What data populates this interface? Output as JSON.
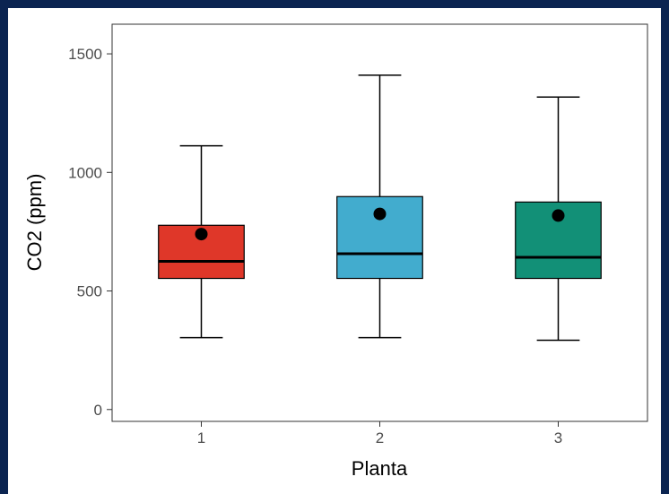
{
  "chart_data": {
    "type": "box",
    "title": "",
    "xlabel": "Planta",
    "ylabel": "CO2 (ppm)",
    "categories": [
      "1",
      "2",
      "3"
    ],
    "ylim": [
      -50,
      1625
    ],
    "yticks": [
      0,
      500,
      1000,
      1500
    ],
    "ytick_labels": [
      "0",
      "500",
      "1000",
      "1500"
    ],
    "grid": false,
    "legend": "none",
    "boxes": [
      {
        "category": "1",
        "whisker_low": 303,
        "q1": 553,
        "median": 625,
        "q3": 777,
        "whisker_high": 1112,
        "mean": 740,
        "color": "#df3729"
      },
      {
        "category": "2",
        "whisker_low": 303,
        "q1": 553,
        "median": 657,
        "q3": 898,
        "whisker_high": 1410,
        "mean": 825,
        "color": "#42acce"
      },
      {
        "category": "3",
        "whisker_low": 292,
        "q1": 553,
        "median": 642,
        "q3": 875,
        "whisker_high": 1318,
        "mean": 818,
        "color": "#129077"
      }
    ]
  },
  "colors": {
    "frame": "#0b2451",
    "panel_border": "#333333",
    "median_line": "#000000",
    "mean_point": "#000000"
  }
}
